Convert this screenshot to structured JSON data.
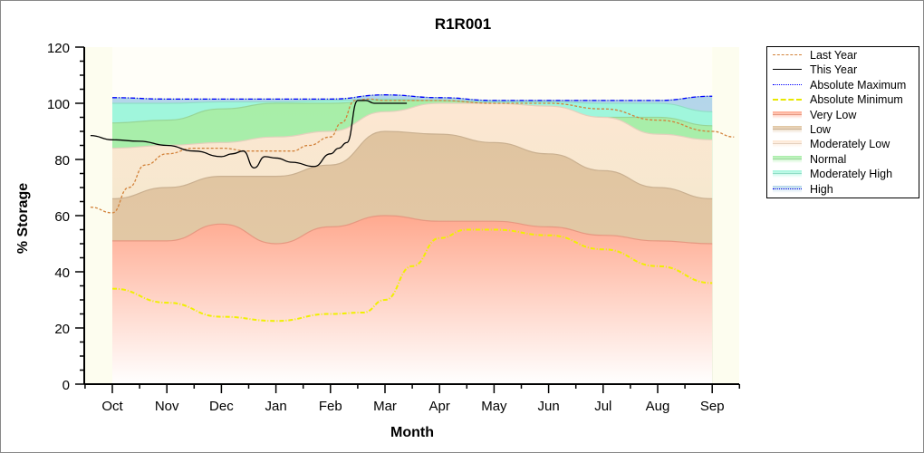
{
  "chart_data": {
    "type": "area",
    "title": "R1R001",
    "xlabel": "Month",
    "ylabel": "% Storage",
    "categories": [
      "Oct",
      "Nov",
      "Dec",
      "Jan",
      "Feb",
      "Mar",
      "Apr",
      "May",
      "Jun",
      "Jul",
      "Aug",
      "Sep"
    ],
    "ylim": [
      0,
      120
    ],
    "yticks": [
      0,
      20,
      40,
      60,
      80,
      100,
      120
    ],
    "grid": false,
    "legend_position": "right",
    "bands": [
      {
        "name": "Very Low",
        "color": "#ffa98f",
        "upper": [
          51,
          51,
          57,
          50,
          56,
          60,
          58,
          58,
          56,
          53,
          51,
          50
        ]
      },
      {
        "name": "Low",
        "color": "#e0c4a0",
        "upper": [
          66,
          70,
          74,
          74,
          78,
          90,
          89,
          86,
          82,
          76,
          70,
          66
        ]
      },
      {
        "name": "Moderately Low",
        "color": "#fde7d2",
        "upper": [
          84,
          85,
          86,
          88,
          90,
          97,
          100,
          100,
          99,
          95,
          89,
          87
        ]
      },
      {
        "name": "Normal",
        "color": "#a8eea8",
        "upper": [
          93,
          94,
          98,
          100,
          100,
          101,
          101,
          100,
          97,
          95,
          95,
          92
        ]
      },
      {
        "name": "Moderately High",
        "color": "#a0f6dc",
        "upper": [
          100,
          100,
          100.5,
          100.5,
          101,
          101.5,
          101,
          100.5,
          100.5,
          100,
          100,
          97
        ]
      },
      {
        "name": "High",
        "color": "#b4d6ea",
        "upper": [
          102,
          101.5,
          101.5,
          101.5,
          101.5,
          103,
          102,
          101,
          101,
          101,
          101,
          102.5
        ]
      }
    ],
    "series": [
      {
        "name": "Last Year",
        "color": "#d2823a",
        "style": "dashed",
        "x": [
          -0.4,
          0,
          0.3,
          0.6,
          1,
          1.5,
          2,
          2.5,
          3,
          3.3,
          3.6,
          4,
          4.2,
          4.45,
          4.7,
          5,
          5.5,
          6,
          7,
          8,
          9,
          10,
          11,
          11.4
        ],
        "y": [
          63,
          61,
          70,
          78,
          82,
          84,
          84,
          83,
          83,
          83,
          85,
          88,
          93,
          101,
          101.5,
          101,
          101,
          101,
          100,
          100,
          98,
          94,
          90,
          88
        ]
      },
      {
        "name": "This Year",
        "color": "#000000",
        "style": "solid",
        "x": [
          -0.4,
          0,
          0.5,
          1,
          1.5,
          2,
          2.2,
          2.4,
          2.6,
          2.8,
          3,
          3.3,
          3.7,
          4,
          4.15,
          4.3,
          4.5,
          4.65,
          4.8,
          5,
          5.4
        ],
        "y": [
          88.5,
          87,
          86.5,
          85,
          83,
          81,
          82,
          83,
          77,
          81,
          80.5,
          79,
          77.5,
          82,
          84,
          86,
          101,
          101,
          100,
          100,
          100
        ]
      },
      {
        "name": "Absolute Maximum",
        "color": "#0000ff",
        "style": "dashdot",
        "x": [
          0,
          1,
          2,
          3,
          4,
          5,
          6,
          7,
          8,
          9,
          10,
          11
        ],
        "y": [
          102,
          101.5,
          101.5,
          101.5,
          101.5,
          103,
          102,
          101,
          101,
          101,
          101,
          102.5
        ]
      },
      {
        "name": "Absolute Minimum",
        "color": "#f0f000",
        "style": "dashdot",
        "x": [
          0,
          1,
          2,
          3,
          4,
          4.6,
          5,
          5.5,
          6,
          6.5,
          7,
          8,
          9,
          10,
          11
        ],
        "y": [
          34,
          29,
          24,
          22.5,
          25,
          25.5,
          30,
          42,
          52,
          55,
          55,
          53,
          48,
          42,
          36
        ]
      }
    ],
    "legend": [
      "Last Year",
      "This Year",
      "Absolute Maximum",
      "Absolute Minimum",
      "Very Low",
      "Low",
      "Moderately Low",
      "Normal",
      "Moderately High",
      "High"
    ]
  }
}
